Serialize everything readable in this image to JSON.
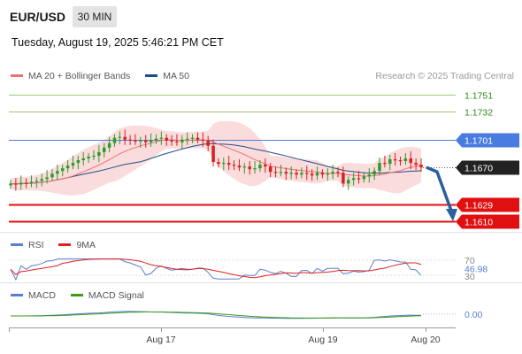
{
  "header": {
    "symbol": "EUR/USD",
    "interval": "30 MIN",
    "datetime": "Tuesday, August 19, 2025 5:46:21 PM CET"
  },
  "legend": {
    "items": [
      {
        "label": "MA 20 + Bollinger Bands",
        "color": "#f07070"
      },
      {
        "label": "MA 50",
        "color": "#1f4e8c"
      }
    ],
    "credit": "Research © 2025 Trading Central"
  },
  "colors": {
    "candle_up": "#2c9c2c",
    "candle_down": "#d82020",
    "bollinger_fill": "#fbdcdc",
    "ma20": "#f07070",
    "ma50": "#1f4e8c",
    "target_line": "#9dc87a",
    "target_text": "#2e8b1e",
    "pivot_line": "#4a7be0",
    "support_line": "#e01010",
    "arrow": "#2d5f9e",
    "rsi": "#5a7fd0",
    "rsi_ma": "#e02020",
    "macd": "#5a7fd0",
    "macd_signal": "#3a9a1a"
  },
  "levels": [
    {
      "price": "1.1751",
      "kind": "target"
    },
    {
      "price": "1.1732",
      "kind": "target"
    },
    {
      "price": "1.1701",
      "kind": "pivot"
    },
    {
      "price": "1.1670",
      "kind": "last"
    },
    {
      "price": "1.1629",
      "kind": "support"
    },
    {
      "price": "1.1610",
      "kind": "support"
    }
  ],
  "rsi_panel": {
    "legend": [
      {
        "label": "RSI",
        "color": "#5a7fd0"
      },
      {
        "label": "9MA",
        "color": "#e02020"
      }
    ],
    "ticks": [
      "70",
      "30"
    ],
    "value": "46.98"
  },
  "macd_panel": {
    "legend": [
      {
        "label": "MACD",
        "color": "#5a7fd0"
      },
      {
        "label": "MACD Signal",
        "color": "#3a9a1a"
      }
    ],
    "value": "0.00"
  },
  "x_axis": {
    "labels": [
      "Aug 17",
      "Aug 19",
      "Aug 20"
    ]
  },
  "chart_data": {
    "type": "candlestick",
    "symbol": "EUR/USD",
    "timeframe": "30 MIN",
    "ylim": [
      1.1605,
      1.1755
    ],
    "price_levels": [
      1.1751,
      1.1732,
      1.1701,
      1.167,
      1.1629,
      1.161
    ],
    "last_price": 1.167,
    "projected_target": 1.161,
    "x_tick_labels": [
      "Aug 17",
      "Aug 19",
      "Aug 20"
    ],
    "close_series": [
      1.1652,
      1.1651,
      1.1653,
      1.1652,
      1.1654,
      1.1655,
      1.1657,
      1.1659,
      1.1663,
      1.1666,
      1.1669,
      1.1672,
      1.1675,
      1.1678,
      1.168,
      1.1682,
      1.1683,
      1.1687,
      1.1692,
      1.1697,
      1.1703,
      1.1704,
      1.1701,
      1.17,
      1.1699,
      1.17,
      1.1698,
      1.17,
      1.1702,
      1.1703,
      1.17,
      1.1699,
      1.1698,
      1.1701,
      1.1702,
      1.1703,
      1.1701,
      1.17,
      1.1694,
      1.1676,
      1.1674,
      1.1675,
      1.1673,
      1.1672,
      1.167,
      1.1671,
      1.1668,
      1.1669,
      1.1673,
      1.1671,
      1.1665,
      1.1664,
      1.1665,
      1.1663,
      1.1664,
      1.1662,
      1.1664,
      1.1663,
      1.1661,
      1.1664,
      1.1662,
      1.1663,
      1.1665,
      1.1664,
      1.1652,
      1.1656,
      1.1658,
      1.1657,
      1.166,
      1.1662,
      1.1666,
      1.1675,
      1.1674,
      1.1679,
      1.1678,
      1.1677,
      1.168,
      1.1675,
      1.1673,
      1.167
    ],
    "rsi": {
      "value": 46.98,
      "levels": [
        70,
        30
      ]
    },
    "macd": {
      "value": 0.0
    }
  }
}
